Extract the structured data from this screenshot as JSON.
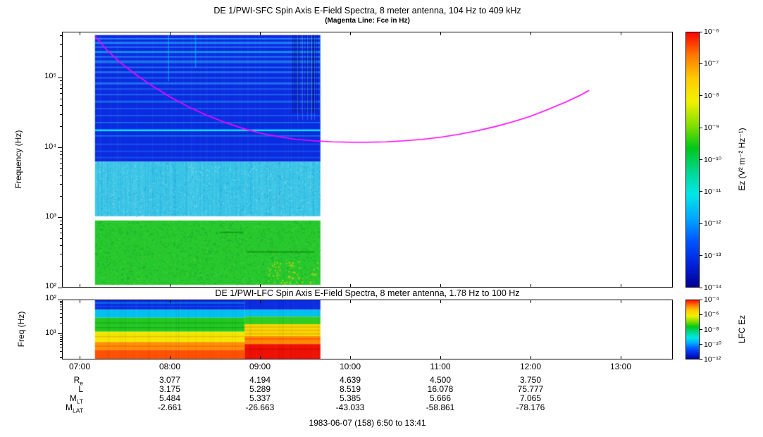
{
  "panel_sfc": {
    "title": "DE 1/PWI-SFC  Spin Axis E-Field Spectra, 8 meter antenna, 104 Hz to 409 kHz",
    "subtitle": "(Magenta Line: Fce in Hz)",
    "ylabel": "Frequency (Hz)",
    "yticks": [
      {
        "exp": 5,
        "label": "10⁵"
      },
      {
        "exp": 4,
        "label": "10⁴"
      },
      {
        "exp": 3,
        "label": "10³"
      },
      {
        "exp": 2,
        "label": "10²"
      }
    ],
    "colorbar": {
      "label": "Ez (V² m⁻² Hz⁻¹)",
      "ticks": [
        {
          "exp": -6,
          "label": "10⁻⁶"
        },
        {
          "exp": -7,
          "label": "10⁻⁷"
        },
        {
          "exp": -8,
          "label": "10⁻⁸"
        },
        {
          "exp": -9,
          "label": "10⁻⁹"
        },
        {
          "exp": -10,
          "label": "10⁻¹⁰"
        },
        {
          "exp": -11,
          "label": "10⁻¹¹"
        },
        {
          "exp": -12,
          "label": "10⁻¹²"
        },
        {
          "exp": -13,
          "label": "10⁻¹³"
        },
        {
          "exp": -14,
          "label": "10⁻¹⁴"
        }
      ]
    }
  },
  "panel_lfc": {
    "title": "DE 1/PWI-LFC  Spin Axis E-Field Spectra, 8 meter antenna, 1.78 Hz to 100 Hz",
    "ylabel": "Freq (Hz)",
    "yticks": [
      {
        "exp": 2,
        "label": "10²"
      },
      {
        "exp": 1,
        "label": "10¹"
      }
    ],
    "colorbar": {
      "label": "LFC Ez",
      "ticks": [
        {
          "exp": -4,
          "label": "10⁻⁴"
        },
        {
          "exp": -6,
          "label": "10⁻⁶"
        },
        {
          "exp": -8,
          "label": "10⁻⁸"
        },
        {
          "exp": -10,
          "label": "10⁻¹⁰"
        },
        {
          "exp": -12,
          "label": "10⁻¹²"
        }
      ]
    }
  },
  "xaxis": {
    "ticks": [
      {
        "t": 7,
        "label": "07:00"
      },
      {
        "t": 8,
        "label": "08:00"
      },
      {
        "t": 9,
        "label": "09:00"
      },
      {
        "t": 10,
        "label": "10:00"
      },
      {
        "t": 11,
        "label": "11:00"
      },
      {
        "t": 12,
        "label": "12:00"
      },
      {
        "t": 13,
        "label": "13:00"
      }
    ]
  },
  "ephemeris": {
    "column_hours": [
      8,
      9,
      10,
      11,
      12
    ],
    "rows": [
      {
        "label": "R",
        "sub": "e",
        "values": [
          "3.077",
          "4.194",
          "4.639",
          "4.500",
          "3.750"
        ]
      },
      {
        "label": "L",
        "sub": "",
        "values": [
          "3.175",
          "5.289",
          "8.519",
          "16.078",
          "75.777"
        ]
      },
      {
        "label": "M",
        "sub": "LT",
        "values": [
          "5.484",
          "5.337",
          "5.385",
          "5.666",
          "7.065"
        ]
      },
      {
        "label": "M",
        "sub": "LAT",
        "values": [
          "-2.661",
          "-26.663",
          "-43.033",
          "-58.861",
          "-78.176"
        ]
      }
    ]
  },
  "footer": "1983-06-07 (158) 6:50 to 13:41",
  "chart_data": [
    {
      "type": "heatmap",
      "name": "SFC spectrogram",
      "title": "DE 1/PWI-SFC Spin Axis E-Field Spectra, 8 meter antenna, 104 Hz to 409 kHz",
      "ylabel": "Frequency (Hz)",
      "xlim_hours": [
        6.805,
        13.578
      ],
      "xticks_hours": [
        7,
        8,
        9,
        10,
        11,
        12,
        13
      ],
      "data_time_range_hours": [
        7.17,
        9.67
      ],
      "ylog_range": [
        2.0,
        5.66
      ],
      "color_scale_exponent_range": [
        -14,
        -6
      ],
      "palette": [
        "#ff0000",
        "#ff7700",
        "#ffcc00",
        "#f2f200",
        "#88e000",
        "#00c818",
        "#00d890",
        "#00e8e8",
        "#00aaff",
        "#0055ff",
        "#0022dd",
        "#000090"
      ],
      "bands": [
        {
          "flog0": 3.8,
          "flog1": 5.612,
          "color": "#0b2be0"
        },
        {
          "flog0": 3.02,
          "flog1": 3.8,
          "color": "#35c4e6"
        },
        {
          "flog0": 2.04,
          "flog1": 2.96,
          "color": "#26c82e"
        }
      ],
      "stripes": [
        {
          "flog": 5.56,
          "h": 2,
          "color": "#3399ff",
          "alpha": 0.8
        },
        {
          "flog": 5.5,
          "h": 3,
          "color": "#22aaff",
          "alpha": 0.7
        },
        {
          "flog": 5.44,
          "h": 2,
          "color": "#3399ff",
          "alpha": 0.6
        },
        {
          "flog": 5.37,
          "h": 3,
          "color": "#17e8f0",
          "alpha": 0.55
        },
        {
          "flog": 5.3,
          "h": 2,
          "color": "#3399ff",
          "alpha": 0.7
        },
        {
          "flog": 5.23,
          "h": 4,
          "color": "#28c0f0",
          "alpha": 0.5
        },
        {
          "flog": 5.15,
          "h": 2,
          "color": "#3399ff",
          "alpha": 0.6
        },
        {
          "flog": 5.08,
          "h": 3,
          "color": "#2aa0f0",
          "alpha": 0.55
        },
        {
          "flog": 5.0,
          "h": 2,
          "color": "#3399ff",
          "alpha": 0.5
        },
        {
          "flog": 4.92,
          "h": 3,
          "color": "#30b8f8",
          "alpha": 0.5
        },
        {
          "flog": 4.84,
          "h": 2,
          "color": "#3399ff",
          "alpha": 0.45
        },
        {
          "flog": 4.76,
          "h": 2,
          "color": "#3399ff",
          "alpha": 0.5
        },
        {
          "flog": 4.66,
          "h": 3,
          "color": "#28b0f0",
          "alpha": 0.45
        },
        {
          "flog": 4.56,
          "h": 2,
          "color": "#3399ff",
          "alpha": 0.4
        },
        {
          "flog": 4.46,
          "h": 2,
          "color": "#3399ff",
          "alpha": 0.4
        },
        {
          "flog": 4.36,
          "h": 2,
          "color": "#22aaee",
          "alpha": 0.45
        },
        {
          "flog": 4.25,
          "h": 2.5,
          "color": "#00eaff",
          "alpha": 1.0
        },
        {
          "flog": 4.17,
          "h": 2,
          "color": "#22aaee",
          "alpha": 0.5
        },
        {
          "flog": 4.05,
          "h": 2,
          "color": "#3399ff",
          "alpha": 0.35
        },
        {
          "flog": 3.95,
          "h": 2,
          "color": "#3399ff",
          "alpha": 0.3
        },
        {
          "flog": 3.86,
          "h": 2,
          "color": "#3399ff",
          "alpha": 0.3
        }
      ],
      "fce_line": {
        "name": "Fce (electron cyclotron frequency)",
        "color": "#ff00ff",
        "points_hours_logf": [
          [
            7.17,
            5.6
          ],
          [
            7.3,
            5.4
          ],
          [
            7.45,
            5.22
          ],
          [
            7.62,
            5.05
          ],
          [
            7.8,
            4.89
          ],
          [
            8.0,
            4.73
          ],
          [
            8.2,
            4.59
          ],
          [
            8.4,
            4.47
          ],
          [
            8.6,
            4.37
          ],
          [
            8.8,
            4.28
          ],
          [
            9.0,
            4.21
          ],
          [
            9.2,
            4.16
          ],
          [
            9.4,
            4.12
          ],
          [
            9.6,
            4.1
          ],
          [
            9.8,
            4.085
          ],
          [
            10.0,
            4.08
          ],
          [
            10.2,
            4.08
          ],
          [
            10.4,
            4.085
          ],
          [
            10.6,
            4.1
          ],
          [
            10.8,
            4.12
          ],
          [
            11.0,
            4.15
          ],
          [
            11.2,
            4.19
          ],
          [
            11.4,
            4.24
          ],
          [
            11.6,
            4.3
          ],
          [
            11.8,
            4.37
          ],
          [
            12.0,
            4.45
          ],
          [
            12.2,
            4.55
          ],
          [
            12.4,
            4.66
          ],
          [
            12.55,
            4.75
          ],
          [
            12.65,
            4.82
          ]
        ]
      }
    },
    {
      "type": "heatmap",
      "name": "LFC spectrogram",
      "title": "DE 1/PWI-LFC Spin Axis E-Field Spectra, 8 meter antenna, 1.78 Hz to 100 Hz",
      "ylabel": "Freq (Hz)",
      "data_time_range_hours": [
        7.17,
        9.67
      ],
      "ylog_range": [
        0.25,
        2.0
      ],
      "color_scale_exponent_range": [
        -12,
        -4
      ],
      "palette": [
        "#ff0000",
        "#ff7700",
        "#ffcc00",
        "#f2f200",
        "#88e000",
        "#00c818",
        "#00d890",
        "#00e8e8",
        "#00aaff",
        "#0055ff",
        "#0022dd",
        "#000090"
      ],
      "phases": [
        {
          "t0": 7.17,
          "t1": 8.83,
          "bands": [
            {
              "flog0": 1.7,
              "flog1": 2.0,
              "color": "#0b2ce0"
            },
            {
              "flog0": 1.47,
              "flog1": 1.7,
              "color": "#00c0f0"
            },
            {
              "flog0": 1.06,
              "flog1": 1.47,
              "color": "#22c822"
            },
            {
              "flog0": 0.76,
              "flog1": 1.06,
              "color": "#f0e800"
            },
            {
              "flog0": 0.53,
              "flog1": 0.76,
              "color": "#ff9000"
            },
            {
              "flog0": 0.25,
              "flog1": 0.53,
              "color": "#ff5000"
            }
          ]
        },
        {
          "t0": 8.83,
          "t1": 9.67,
          "bands": [
            {
              "flog0": 1.7,
              "flog1": 2.0,
              "color": "#0b2ce0"
            },
            {
              "flog0": 1.5,
              "flog1": 1.7,
              "color": "#00c0f0"
            },
            {
              "flog0": 1.28,
              "flog1": 1.5,
              "color": "#30cc20"
            },
            {
              "flog0": 0.93,
              "flog1": 1.28,
              "color": "#f0dc00"
            },
            {
              "flog0": 0.7,
              "flog1": 0.93,
              "color": "#ff8800"
            },
            {
              "flog0": 0.25,
              "flog1": 0.7,
              "color": "#ee1000"
            }
          ]
        }
      ],
      "stripes": [
        {
          "t0": 7.17,
          "t1": 8.83,
          "flog": 1.9,
          "h": 1.5,
          "color": "#00d8ff",
          "alpha": 0.5
        },
        {
          "t0": 7.17,
          "t1": 8.83,
          "flog": 1.8,
          "h": 1.5,
          "color": "#0080ff",
          "alpha": 0.4
        },
        {
          "t0": 7.17,
          "t1": 8.83,
          "flog": 1.32,
          "h": 1.5,
          "color": "#007800",
          "alpha": 0.35
        },
        {
          "t0": 7.17,
          "t1": 8.83,
          "flog": 1.18,
          "h": 1.5,
          "color": "#007800",
          "alpha": 0.35
        },
        {
          "t0": 7.17,
          "t1": 8.83,
          "flog": 0.92,
          "h": 1.5,
          "color": "#ff8800",
          "alpha": 0.5
        },
        {
          "t0": 7.17,
          "t1": 8.83,
          "flog": 0.64,
          "h": 1.5,
          "color": "#ff3000",
          "alpha": 0.4
        },
        {
          "t0": 8.83,
          "t1": 9.67,
          "flog": 1.2,
          "h": 2,
          "color": "#ff9000",
          "alpha": 0.5
        },
        {
          "t0": 8.83,
          "t1": 9.67,
          "flog": 1.1,
          "h": 2,
          "color": "#ff9000",
          "alpha": 0.5
        },
        {
          "t0": 8.83,
          "t1": 9.67,
          "flog": 1.0,
          "h": 2,
          "color": "#ff8000",
          "alpha": 0.45
        },
        {
          "t0": 8.83,
          "t1": 9.67,
          "flog": 0.85,
          "h": 2,
          "color": "#ff2000",
          "alpha": 0.4
        },
        {
          "t0": 8.83,
          "t1": 9.67,
          "flog": 0.55,
          "h": 2,
          "color": "#c00000",
          "alpha": 0.35
        }
      ]
    }
  ]
}
